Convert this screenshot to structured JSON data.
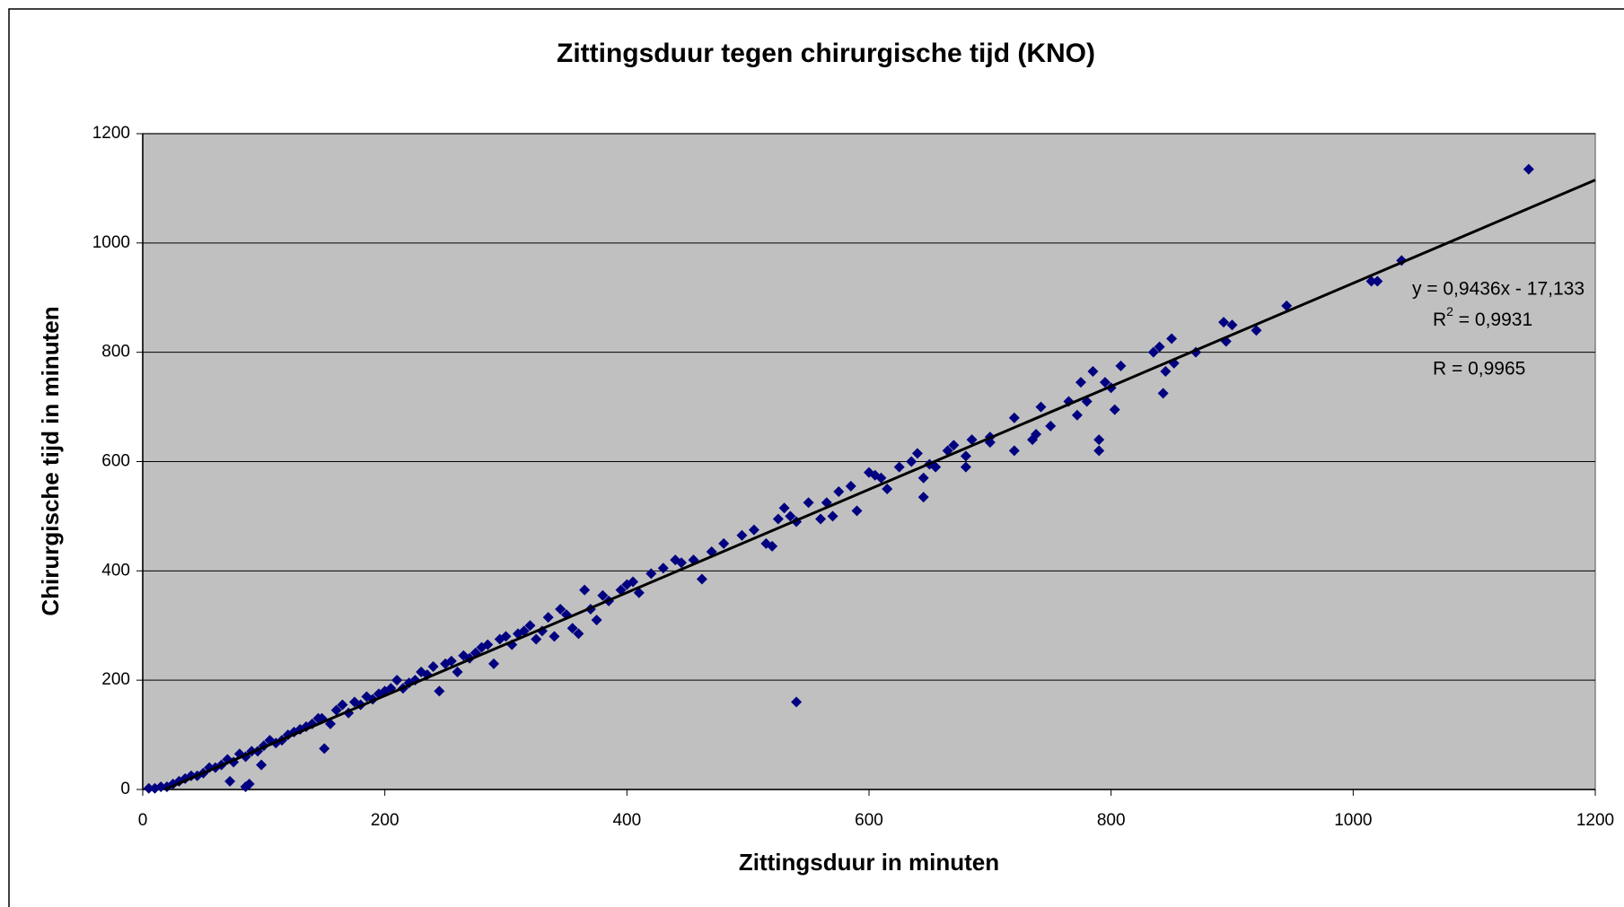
{
  "chart_data": {
    "type": "scatter",
    "title": "Zittingsduur tegen chirurgische tijd (KNO)",
    "xlabel": "Zittingsduur in minuten",
    "ylabel": "Chirurgische tijd in minuten",
    "xlim": [
      0,
      1200
    ],
    "ylim": [
      0,
      1200
    ],
    "xticks": [
      0,
      200,
      400,
      600,
      800,
      1000,
      1200
    ],
    "yticks": [
      0,
      200,
      400,
      600,
      800,
      1000,
      1200
    ],
    "grid": true,
    "background": "#c0c0c0",
    "series": [
      {
        "color": "#000080",
        "x": [
          540,
          1145,
          1040,
          1015,
          1020,
          945,
          920,
          895,
          893,
          900,
          870,
          850,
          845,
          843,
          835,
          840,
          852,
          808,
          803,
          800,
          795,
          790,
          790,
          785,
          780,
          775,
          772,
          765,
          750,
          742,
          738,
          735,
          720,
          720,
          700,
          700,
          685,
          680,
          680,
          670,
          665,
          655,
          650,
          645,
          645,
          640,
          635,
          625,
          615,
          610,
          605,
          600,
          590,
          585,
          575,
          570,
          565,
          560,
          550,
          540,
          535,
          530,
          525,
          520,
          515,
          505,
          495,
          480,
          470,
          462,
          455,
          445,
          440,
          430,
          420,
          410,
          405,
          400,
          395,
          385,
          380,
          375,
          370,
          365,
          360,
          355,
          350,
          345,
          340,
          335,
          330,
          325,
          320,
          315,
          310,
          305,
          300,
          295,
          290,
          285,
          280,
          275,
          270,
          265,
          260,
          255,
          250,
          245,
          240,
          235,
          230,
          225,
          220,
          215,
          210,
          205,
          200,
          195,
          190,
          185,
          180,
          175,
          170,
          165,
          160,
          155,
          150,
          148,
          145,
          140,
          135,
          130,
          125,
          120,
          115,
          110,
          105,
          100,
          98,
          95,
          90,
          88,
          85,
          85,
          80,
          75,
          72,
          70,
          65,
          60,
          55,
          50,
          45,
          40,
          35,
          30,
          25,
          20,
          15,
          10,
          5
        ],
        "values": [
          160,
          1135,
          968,
          930,
          930,
          885,
          840,
          820,
          855,
          850,
          800,
          825,
          765,
          725,
          800,
          810,
          780,
          775,
          695,
          735,
          745,
          620,
          640,
          765,
          710,
          745,
          685,
          710,
          665,
          700,
          650,
          640,
          620,
          680,
          635,
          645,
          640,
          590,
          610,
          630,
          620,
          590,
          595,
          570,
          535,
          615,
          600,
          590,
          550,
          570,
          575,
          580,
          510,
          555,
          545,
          500,
          525,
          495,
          525,
          490,
          500,
          515,
          495,
          445,
          450,
          475,
          465,
          450,
          435,
          385,
          420,
          415,
          420,
          405,
          395,
          360,
          380,
          375,
          365,
          345,
          355,
          310,
          330,
          365,
          285,
          295,
          320,
          330,
          280,
          315,
          290,
          275,
          300,
          290,
          285,
          265,
          280,
          275,
          230,
          265,
          260,
          250,
          240,
          245,
          215,
          235,
          230,
          180,
          225,
          210,
          215,
          200,
          195,
          185,
          200,
          185,
          180,
          175,
          165,
          170,
          155,
          160,
          140,
          155,
          145,
          120,
          75,
          130,
          130,
          120,
          115,
          110,
          105,
          100,
          90,
          85,
          90,
          80,
          45,
          70,
          70,
          10,
          5,
          60,
          65,
          50,
          15,
          55,
          45,
          40,
          40,
          30,
          25,
          25,
          20,
          15,
          10,
          5,
          5,
          2,
          2
        ]
      }
    ],
    "trendline": {
      "color": "#000000",
      "x": [
        18.16,
        1200
      ],
      "values": [
        0,
        1115.2
      ]
    },
    "annotations": {
      "equation": "y = 0,9436x - 17,133",
      "r2": [
        "R",
        "2",
        " = 0,9931"
      ],
      "r": "R  = 0,9965"
    }
  }
}
